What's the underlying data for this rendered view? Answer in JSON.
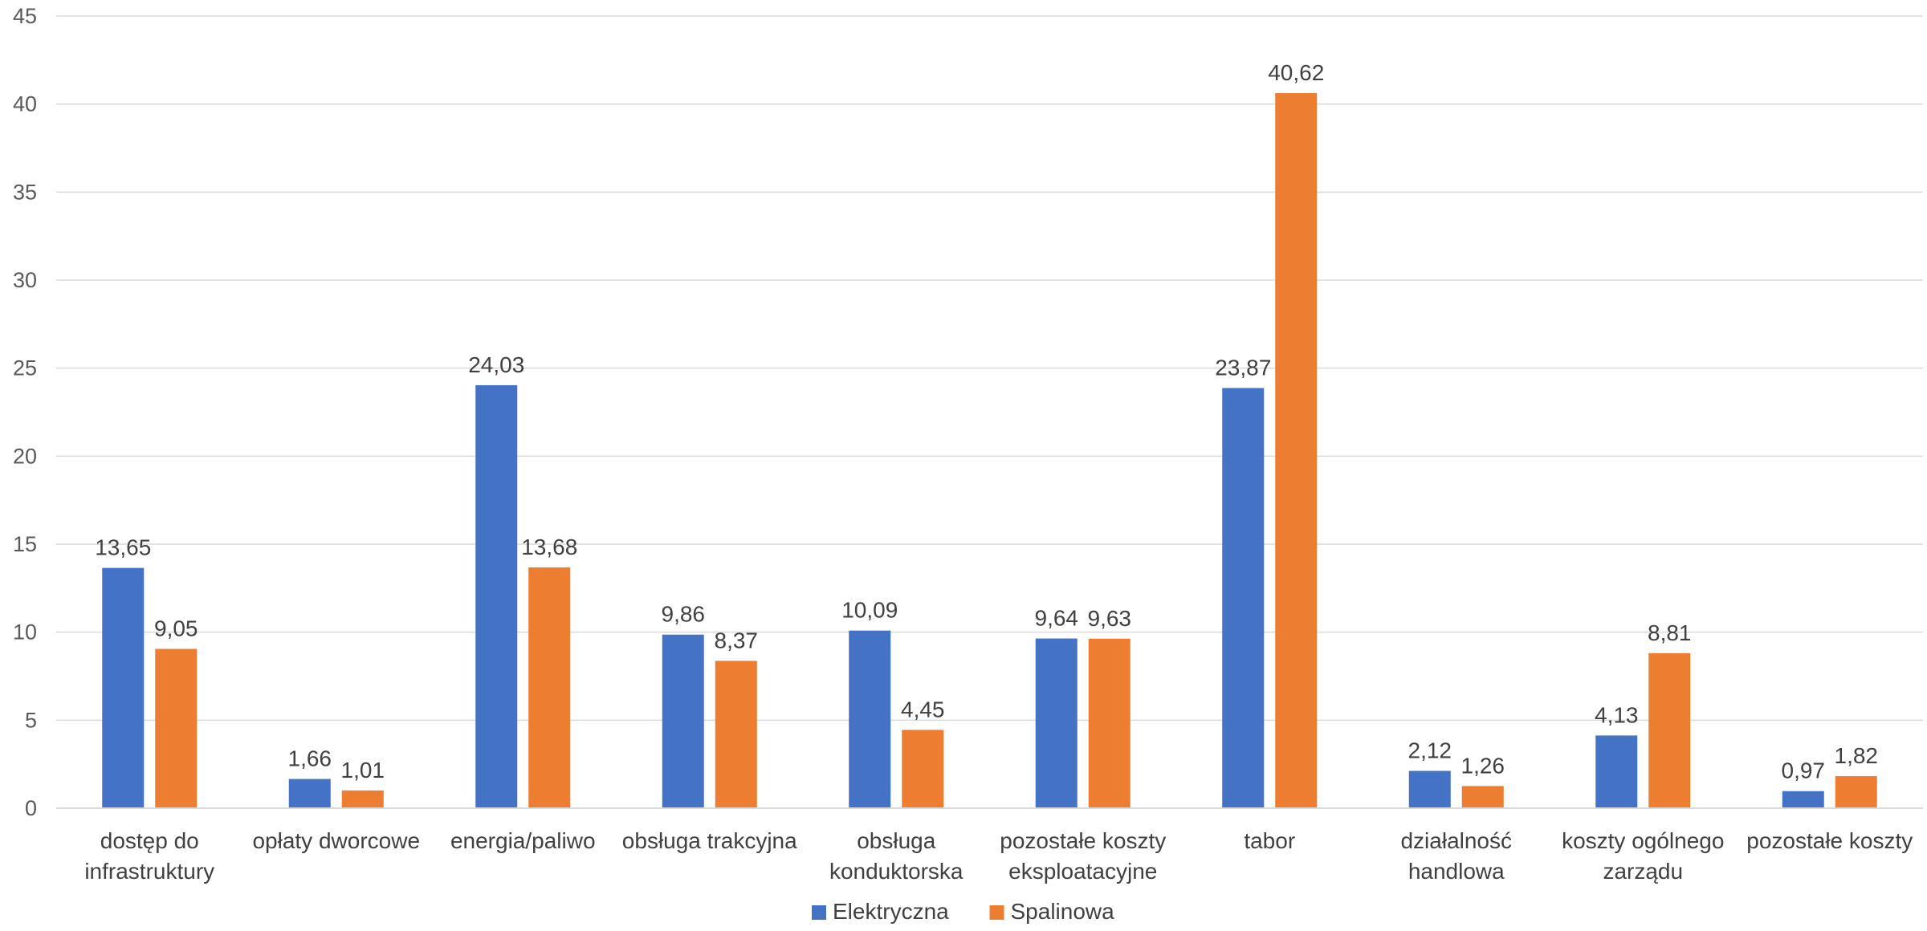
{
  "chart_data": {
    "type": "bar",
    "title": "",
    "xlabel": "",
    "ylabel": "",
    "ylim": [
      0,
      45
    ],
    "yticks": [
      0,
      5,
      10,
      15,
      20,
      25,
      30,
      35,
      40,
      45
    ],
    "grid": true,
    "legend_position": "bottom",
    "categories": [
      [
        "dostęp do",
        "infrastruktury"
      ],
      [
        "opłaty dworcowe"
      ],
      [
        "energia/paliwo"
      ],
      [
        "obsługa trakcyjna"
      ],
      [
        "obsługa",
        "konduktorska"
      ],
      [
        "pozostałe koszty",
        "eksploatacyjne"
      ],
      [
        "tabor"
      ],
      [
        "działalność",
        "handlowa"
      ],
      [
        "koszty ogólnego",
        "zarządu"
      ],
      [
        "pozostałe koszty"
      ]
    ],
    "series": [
      {
        "name": "Elektryczna",
        "color": "#4472C4",
        "values": [
          13.65,
          1.66,
          24.03,
          9.86,
          10.09,
          9.64,
          23.87,
          2.12,
          4.13,
          0.97
        ],
        "labels": [
          "13,65",
          "1,66",
          "24,03",
          "9,86",
          "10,09",
          "9,64",
          "23,87",
          "2,12",
          "4,13",
          "0,97"
        ]
      },
      {
        "name": "Spalinowa",
        "color": "#ED7D31",
        "values": [
          9.05,
          1.01,
          13.68,
          8.37,
          4.45,
          9.63,
          40.62,
          1.26,
          8.81,
          1.82
        ],
        "labels": [
          "9,05",
          "1,01",
          "13,68",
          "8,37",
          "4,45",
          "9,63",
          "40,62",
          "1,26",
          "8,81",
          "1,82"
        ]
      }
    ]
  }
}
